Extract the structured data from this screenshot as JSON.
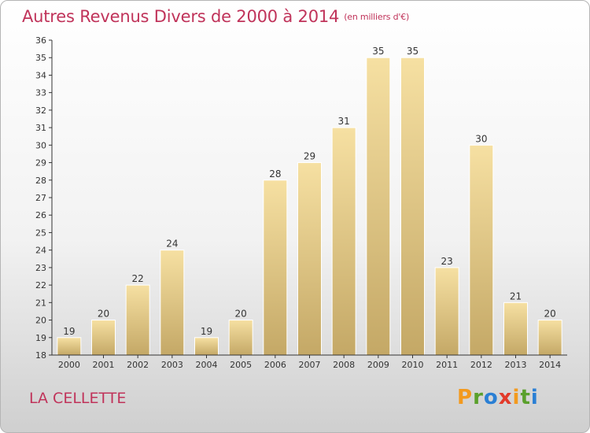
{
  "header": {
    "title": "Autres Revenus Divers de 2000 à 2014",
    "unit": "(en milliers d'€)"
  },
  "footer": {
    "commune": "LA CELLETTE",
    "logo_letters": [
      "P",
      "r",
      "o",
      "x",
      "i",
      "t",
      "i"
    ]
  },
  "chart_data": {
    "type": "bar",
    "categories": [
      "2000",
      "2001",
      "2002",
      "2003",
      "2004",
      "2005",
      "2006",
      "2007",
      "2008",
      "2009",
      "2010",
      "2011",
      "2012",
      "2013",
      "2014"
    ],
    "values": [
      19,
      20,
      22,
      24,
      19,
      20,
      28,
      29,
      31,
      35,
      35,
      23,
      30,
      21,
      20
    ],
    "title": "Autres Revenus Divers de 2000 à 2014",
    "xlabel": "",
    "ylabel": "",
    "ylim": [
      18,
      36
    ],
    "yticks": [
      18,
      19,
      20,
      21,
      22,
      23,
      24,
      25,
      26,
      27,
      28,
      29,
      30,
      31,
      32,
      33,
      34,
      35,
      36
    ],
    "grid": false,
    "data_labels": true,
    "colors": {
      "bar_top": "#f6e0a2",
      "bar_bottom": "#c4a866",
      "title": "#c0335a",
      "axis": "#333333"
    }
  }
}
